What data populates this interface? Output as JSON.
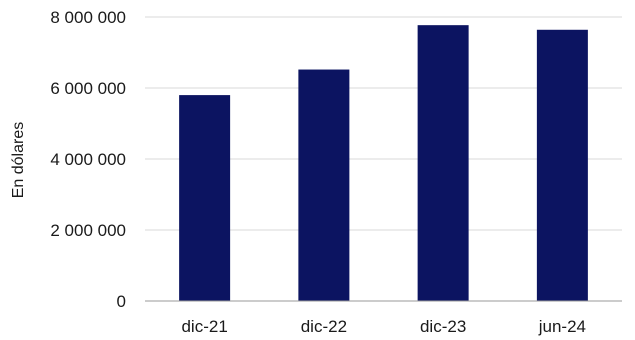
{
  "chart_data": {
    "type": "bar",
    "categories": [
      "dic-21",
      "dic-22",
      "dic-23",
      "jun-24"
    ],
    "values": [
      5800000,
      6520000,
      7770000,
      7640000
    ],
    "ylabel": "En dólares",
    "xlabel": "",
    "ylim": [
      0,
      8000000
    ],
    "yticks": [
      0,
      2000000,
      4000000,
      6000000,
      8000000
    ],
    "ytick_labels": [
      "0",
      "2 000 000",
      "4 000 000",
      "6 000 000",
      "8 000 000"
    ],
    "grid": true,
    "legend": "none",
    "bar_color": "#0c1461",
    "grid_color": "#d9d9d9",
    "axis_color": "#9a9a9a"
  }
}
